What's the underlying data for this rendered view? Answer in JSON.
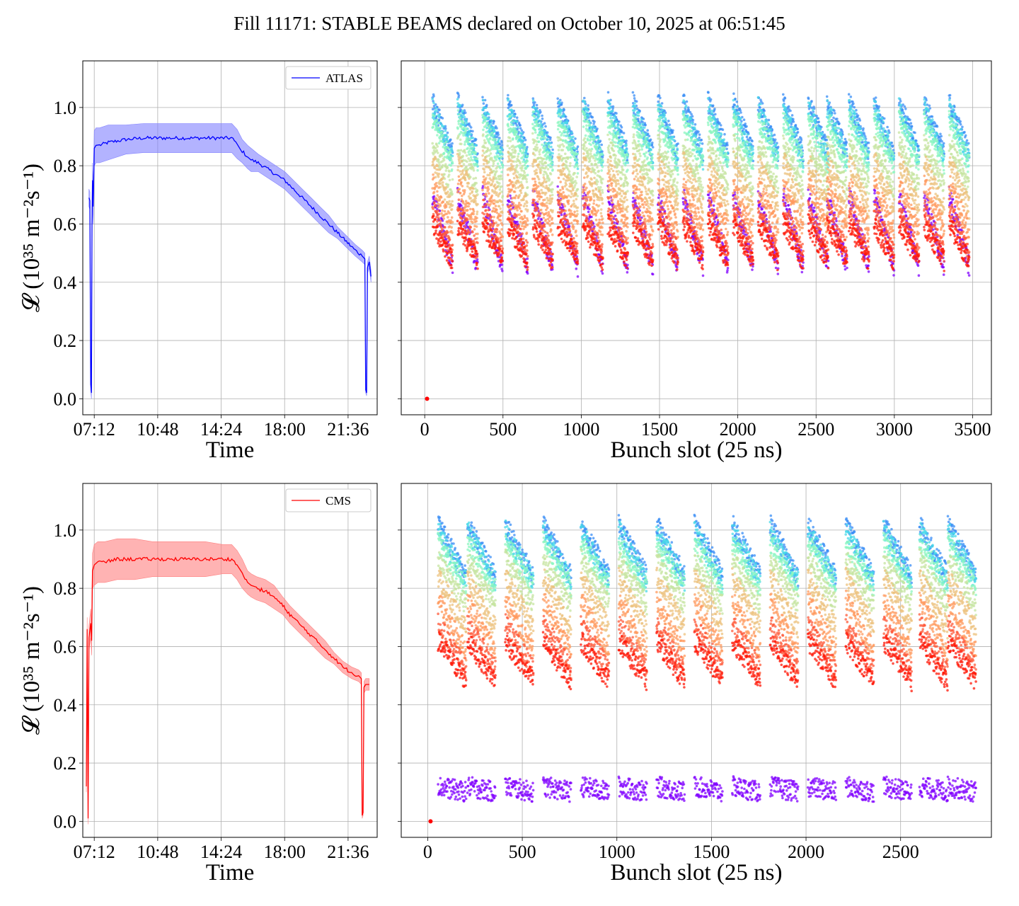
{
  "title": "Fill 11171: STABLE BEAMS declared on October 10, 2025 at 06:51:45",
  "chart_data": [
    {
      "id": "atlas-time",
      "type": "line",
      "series_name": "ATLAS",
      "color": "#0000ff",
      "band_color": "#8080ff",
      "xlabel": "Time",
      "ylabel": "𝓛 (10³⁵ m⁻²s⁻¹)",
      "xlim": [
        6.55,
        23.25
      ],
      "ylim": [
        -0.055,
        1.16
      ],
      "xticks": [
        7.2,
        10.8,
        14.4,
        18.0,
        21.6
      ],
      "xtick_labels": [
        "07:12",
        "10:48",
        "14:24",
        "18:00",
        "21:36"
      ],
      "yticks": [
        0.0,
        0.2,
        0.4,
        0.6,
        0.8,
        1.0
      ],
      "ytick_labels": [
        "0.0",
        "0.2",
        "0.4",
        "0.6",
        "0.8",
        "1.0"
      ],
      "legend": "top-right",
      "grid": true,
      "x": [
        6.9,
        6.95,
        7.0,
        7.04,
        7.07,
        7.1,
        7.14,
        7.2,
        7.3,
        7.5,
        8.0,
        9.0,
        10.0,
        11.0,
        12.0,
        13.0,
        14.0,
        15.0,
        15.3,
        15.6,
        15.9,
        16.1,
        16.5,
        17.0,
        17.5,
        18.0,
        18.5,
        19.0,
        19.5,
        20.0,
        20.5,
        21.0,
        21.5,
        22.0,
        22.4,
        22.55,
        22.6,
        22.65,
        22.7,
        22.8,
        22.9
      ],
      "y": [
        0.69,
        0.68,
        0.05,
        0.02,
        0.6,
        0.75,
        0.66,
        0.86,
        0.87,
        0.87,
        0.88,
        0.89,
        0.895,
        0.895,
        0.895,
        0.895,
        0.895,
        0.895,
        0.875,
        0.85,
        0.83,
        0.82,
        0.81,
        0.79,
        0.77,
        0.75,
        0.72,
        0.69,
        0.66,
        0.63,
        0.6,
        0.57,
        0.54,
        0.51,
        0.49,
        0.48,
        0.03,
        0.02,
        0.45,
        0.47,
        0.42
      ],
      "band_halfwidth": [
        0.03,
        0.03,
        0.02,
        0.02,
        0.03,
        0.06,
        0.06,
        0.06,
        0.06,
        0.06,
        0.06,
        0.05,
        0.05,
        0.05,
        0.05,
        0.05,
        0.05,
        0.05,
        0.05,
        0.04,
        0.04,
        0.04,
        0.03,
        0.03,
        0.03,
        0.03,
        0.03,
        0.03,
        0.03,
        0.03,
        0.03,
        0.02,
        0.02,
        0.02,
        0.02,
        0.02,
        0.01,
        0.01,
        0.02,
        0.02,
        0.02
      ]
    },
    {
      "id": "atlas-bunch",
      "type": "scatter",
      "xlabel": "Bunch slot (25 ns)",
      "ylabel": "",
      "xlim": [
        -150,
        3620
      ],
      "ylim": [
        -0.055,
        1.16
      ],
      "xticks": [
        0,
        500,
        1000,
        1500,
        2000,
        2500,
        3000,
        3500
      ],
      "xtick_labels": [
        "0",
        "500",
        "1000",
        "1500",
        "2000",
        "2500",
        "3000",
        "3500"
      ],
      "yticks": [
        0.0,
        0.2,
        0.4,
        0.6,
        0.8,
        1.0
      ],
      "grid": true,
      "colormap": "rainbow",
      "trains_start": [
        50,
        210,
        370,
        530,
        690,
        850,
        1010,
        1170,
        1330,
        1490,
        1650,
        1810,
        1970,
        2130,
        2290,
        2450,
        2570,
        2710,
        2870,
        3030,
        3190,
        3350
      ],
      "train_length": 130,
      "snapshots": [
        {
          "color": "#8000ff",
          "top": 0.7,
          "bottom": 0.45
        },
        {
          "color": "#3a8ef5",
          "top": 1.02,
          "bottom": 0.84
        },
        {
          "color": "#4ad9e8",
          "top": 1.0,
          "bottom": 0.82
        },
        {
          "color": "#8cf5c0",
          "top": 0.96,
          "bottom": 0.8
        },
        {
          "color": "#c6e4a0",
          "top": 0.88,
          "bottom": 0.72
        },
        {
          "color": "#ecc27e",
          "top": 0.82,
          "bottom": 0.65
        },
        {
          "color": "#ff9a5e",
          "top": 0.74,
          "bottom": 0.58
        },
        {
          "color": "#ff5a3a",
          "top": 0.66,
          "bottom": 0.5
        },
        {
          "color": "#ff1a0a",
          "top": 0.6,
          "bottom": 0.47
        }
      ],
      "extra_point": {
        "x": 15,
        "y": 0.0,
        "color": "#ff0000"
      }
    },
    {
      "id": "cms-time",
      "type": "line",
      "series_name": "CMS",
      "color": "#ff0000",
      "band_color": "#ff8080",
      "xlabel": "Time",
      "ylabel": "𝓛 (10³⁵ m⁻²s⁻¹)",
      "xlim": [
        6.55,
        23.25
      ],
      "ylim": [
        -0.055,
        1.16
      ],
      "xticks": [
        7.2,
        10.8,
        14.4,
        18.0,
        21.6
      ],
      "xtick_labels": [
        "07:12",
        "10:48",
        "14:24",
        "18:00",
        "21:36"
      ],
      "yticks": [
        0.0,
        0.2,
        0.4,
        0.6,
        0.8,
        1.0
      ],
      "ytick_labels": [
        "0.0",
        "0.2",
        "0.4",
        "0.6",
        "0.8",
        "1.0"
      ],
      "legend": "top-right",
      "grid": true,
      "x": [
        6.75,
        6.8,
        6.85,
        6.9,
        7.0,
        7.05,
        7.1,
        7.2,
        7.4,
        7.8,
        8.5,
        9.5,
        10.5,
        11.5,
        12.5,
        13.5,
        14.5,
        15.0,
        15.3,
        15.6,
        15.9,
        16.1,
        16.4,
        16.9,
        17.4,
        17.9,
        18.3,
        18.8,
        19.3,
        19.8,
        20.3,
        20.8,
        21.3,
        21.8,
        22.2,
        22.35,
        22.4,
        22.45,
        22.5,
        22.6,
        22.8
      ],
      "y": [
        0.12,
        0.66,
        0.01,
        0.63,
        0.68,
        0.62,
        0.86,
        0.88,
        0.89,
        0.89,
        0.9,
        0.9,
        0.9,
        0.9,
        0.9,
        0.9,
        0.9,
        0.9,
        0.88,
        0.85,
        0.82,
        0.81,
        0.8,
        0.79,
        0.77,
        0.74,
        0.71,
        0.68,
        0.65,
        0.62,
        0.59,
        0.56,
        0.53,
        0.51,
        0.5,
        0.49,
        0.02,
        0.03,
        0.46,
        0.47,
        0.47
      ],
      "band_halfwidth": [
        0.02,
        0.04,
        0.02,
        0.04,
        0.05,
        0.05,
        0.06,
        0.07,
        0.07,
        0.07,
        0.07,
        0.07,
        0.06,
        0.06,
        0.06,
        0.06,
        0.05,
        0.05,
        0.05,
        0.05,
        0.04,
        0.04,
        0.04,
        0.04,
        0.04,
        0.03,
        0.03,
        0.03,
        0.03,
        0.03,
        0.03,
        0.02,
        0.02,
        0.02,
        0.02,
        0.02,
        0.01,
        0.01,
        0.02,
        0.02,
        0.02
      ]
    },
    {
      "id": "cms-bunch",
      "type": "scatter",
      "xlabel": "Bunch slot (25 ns)",
      "ylabel": "",
      "xlim": [
        -140,
        2980
      ],
      "ylim": [
        -0.055,
        1.16
      ],
      "xticks": [
        0,
        500,
        1000,
        1500,
        2000,
        2500
      ],
      "xtick_labels": [
        "0",
        "500",
        "1000",
        "1500",
        "2000",
        "2500"
      ],
      "yticks": [
        0.0,
        0.2,
        0.4,
        0.6,
        0.8,
        1.0
      ],
      "grid": true,
      "colormap": "rainbow",
      "trains_start": [
        55,
        210,
        410,
        610,
        810,
        1010,
        1210,
        1410,
        1610,
        1810,
        2010,
        2210,
        2410,
        2600,
        2750
      ],
      "train_length": 150,
      "snapshots": [
        {
          "color": "#8000ff",
          "top": 0.12,
          "bottom": 0.1
        },
        {
          "color": "#3a8ef5",
          "top": 1.02,
          "bottom": 0.84
        },
        {
          "color": "#4ad9e8",
          "top": 1.0,
          "bottom": 0.82
        },
        {
          "color": "#8cf5c0",
          "top": 0.96,
          "bottom": 0.8
        },
        {
          "color": "#c6e4a0",
          "top": 0.9,
          "bottom": 0.74
        },
        {
          "color": "#ecc27e",
          "top": 0.84,
          "bottom": 0.66
        },
        {
          "color": "#ff9a5e",
          "top": 0.76,
          "bottom": 0.58
        },
        {
          "color": "#ff5a3a",
          "top": 0.68,
          "bottom": 0.52
        },
        {
          "color": "#ff1a0a",
          "top": 0.62,
          "bottom": 0.48
        }
      ],
      "extra_point": {
        "x": 15,
        "y": 0.0,
        "color": "#ff0000"
      }
    }
  ]
}
